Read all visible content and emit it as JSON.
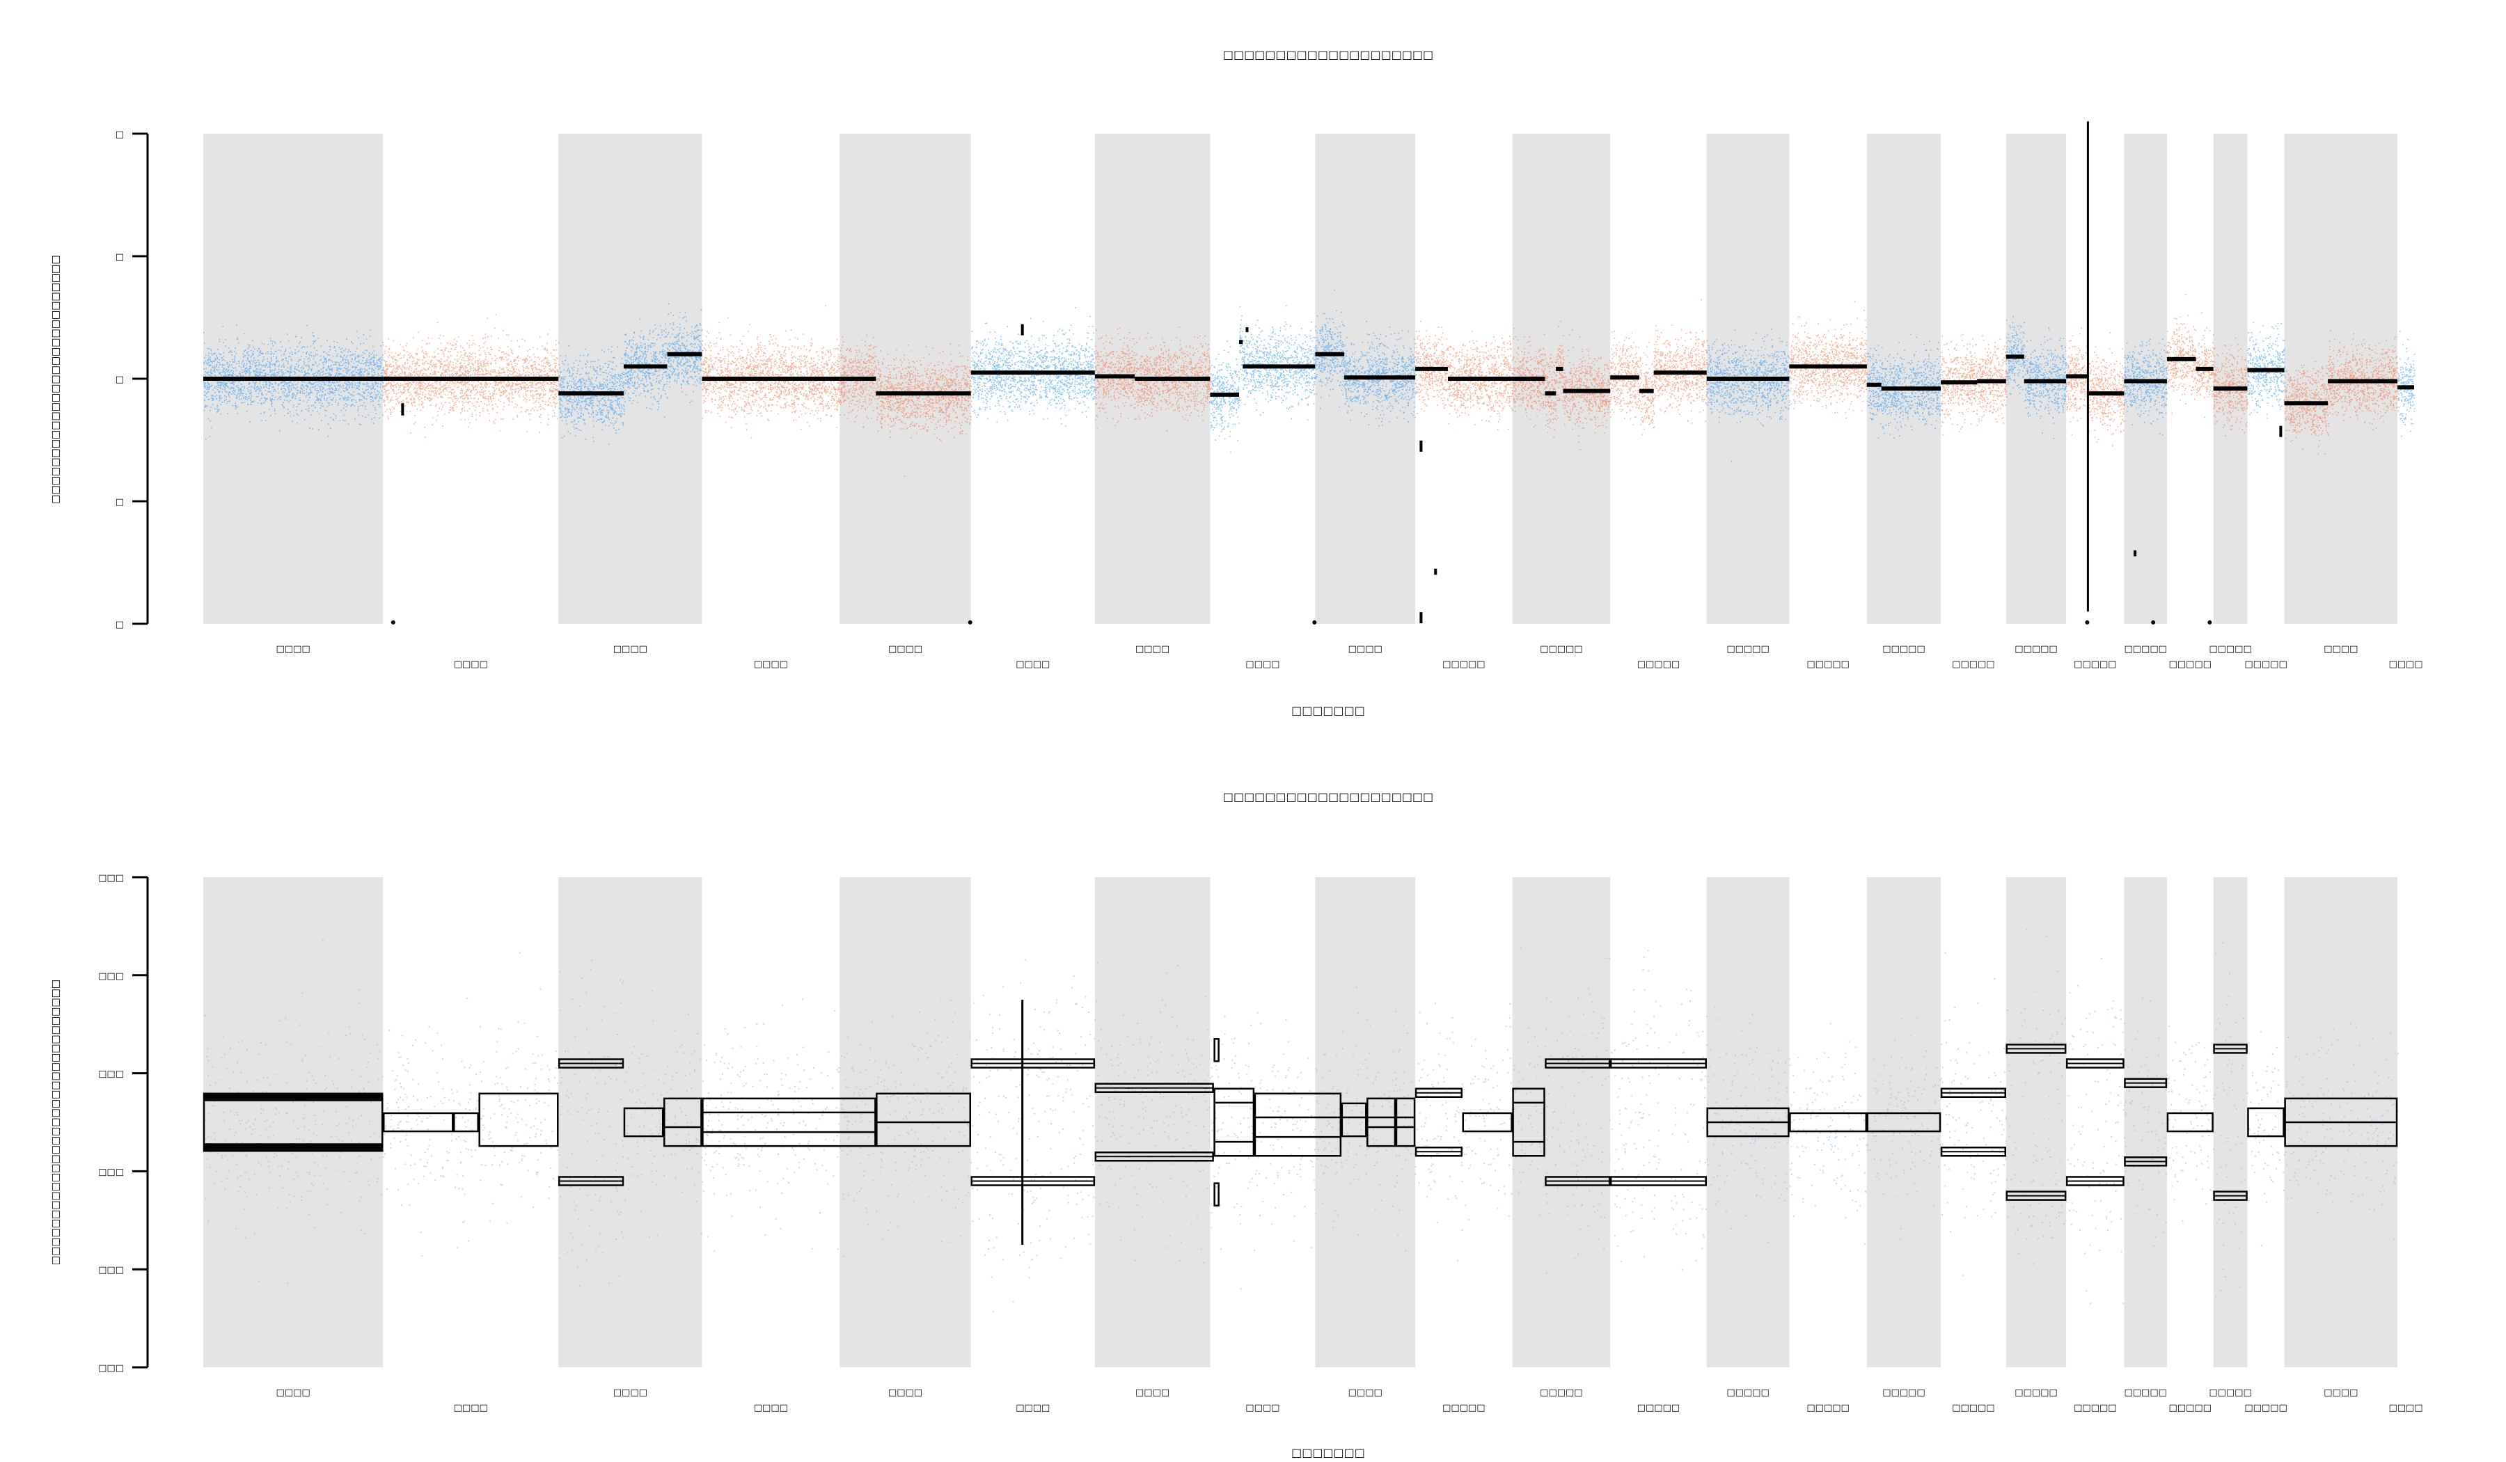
{
  "chart_data": [
    {
      "type": "scatter",
      "title": "□□□□□□□□□□□□□□□□□□□□",
      "xlabel": "□□□□□□□",
      "ylabel": "□□□□□□□□□□□□□□□□□□□□□□□□□□□",
      "ylim": [
        0,
        4
      ],
      "yticks": [
        "□",
        "□",
        "□",
        "□",
        "□"
      ],
      "grid": false,
      "colors": {
        "blue": "#1f8ff5",
        "orange": "#f5673a",
        "band": "#e4e4e4",
        "segment": "#000000"
      },
      "chromosomes": [
        {
          "label": "□□□□",
          "start": 0,
          "end": 248,
          "color": "blue",
          "segments": [
            [
              0,
              248,
              2.0
            ]
          ],
          "band": true
        },
        {
          "label": "□□□□",
          "start": 248,
          "end": 490,
          "color": "orange",
          "segments": [
            [
              0,
              242,
              2.0
            ]
          ],
          "band": false
        },
        {
          "label": "□□□□",
          "start": 490,
          "end": 688,
          "color": "blue",
          "segments": [
            [
              0,
              90,
              1.88
            ],
            [
              90,
              150,
              2.1
            ],
            [
              150,
              198,
              2.2
            ]
          ],
          "band": true
        },
        {
          "label": "□□□□",
          "start": 688,
          "end": 878,
          "color": "orange",
          "segments": [
            [
              0,
              190,
              2.0
            ]
          ],
          "band": false
        },
        {
          "label": "□□□□",
          "start": 878,
          "end": 1059,
          "color": "orange",
          "segments": [
            [
              0,
              50,
              2.0
            ],
            [
              50,
              181,
              1.88
            ]
          ],
          "band": true
        },
        {
          "label": "□□□□",
          "start": 1059,
          "end": 1230,
          "color": "blue",
          "segments": [
            [
              0,
              171,
              2.05
            ]
          ],
          "band": false
        },
        {
          "label": "□□□□",
          "start": 1230,
          "end": 1389,
          "color": "orange",
          "segments": [
            [
              0,
              55,
              2.02
            ],
            [
              55,
              159,
              2.0
            ]
          ],
          "band": true
        },
        {
          "label": "□□□□",
          "start": 1389,
          "end": 1534,
          "color": "blue",
          "segments": [
            [
              0,
              40,
              1.87
            ],
            [
              40,
              45,
              2.3
            ],
            [
              45,
              145,
              2.1
            ]
          ],
          "band": false
        },
        {
          "label": "□□□□",
          "start": 1534,
          "end": 1672,
          "color": "blue",
          "segments": [
            [
              0,
              40,
              2.2
            ],
            [
              40,
              138,
              2.01
            ]
          ],
          "band": true
        },
        {
          "label": "□□□□□",
          "start": 1672,
          "end": 1806,
          "color": "orange",
          "segments": [
            [
              0,
              45,
              2.08
            ],
            [
              45,
              134,
              2.0
            ]
          ],
          "band": false
        },
        {
          "label": "□□□□□",
          "start": 1806,
          "end": 1941,
          "color": "orange",
          "segments": [
            [
              0,
              45,
              2.0
            ],
            [
              45,
              60,
              1.88
            ],
            [
              60,
              70,
              2.08
            ],
            [
              70,
              135,
              1.9
            ]
          ],
          "band": true
        },
        {
          "label": "□□□□□",
          "start": 1941,
          "end": 2074,
          "color": "orange",
          "segments": [
            [
              0,
              40,
              2.01
            ],
            [
              40,
              60,
              1.9
            ],
            [
              60,
              133,
              2.05
            ]
          ],
          "band": false
        },
        {
          "label": "□□□□□",
          "start": 2074,
          "end": 2188,
          "color": "blue",
          "segments": [
            [
              0,
              114,
              2.0
            ]
          ],
          "band": true
        },
        {
          "label": "□□□□□",
          "start": 2188,
          "end": 2295,
          "color": "orange",
          "segments": [
            [
              0,
              107,
              2.1
            ]
          ],
          "band": false
        },
        {
          "label": "□□□□□",
          "start": 2295,
          "end": 2397,
          "color": "blue",
          "segments": [
            [
              0,
              20,
              1.95
            ],
            [
              20,
              102,
              1.92
            ]
          ],
          "band": true
        },
        {
          "label": "□□□□□",
          "start": 2397,
          "end": 2487,
          "color": "orange",
          "segments": [
            [
              0,
              50,
              1.97
            ],
            [
              50,
              90,
              1.98
            ]
          ],
          "band": false
        },
        {
          "label": "□□□□□",
          "start": 2487,
          "end": 2570,
          "color": "blue",
          "segments": [
            [
              0,
              25,
              2.18
            ],
            [
              25,
              83,
              1.98
            ]
          ],
          "band": true
        },
        {
          "label": "□□□□□",
          "start": 2570,
          "end": 2650,
          "color": "orange",
          "segments": [
            [
              0,
              30,
              2.02
            ],
            [
              30,
              80,
              1.88
            ]
          ],
          "band": false
        },
        {
          "label": "□□□□□",
          "start": 2650,
          "end": 2709,
          "color": "blue",
          "segments": [
            [
              0,
              59,
              1.98
            ]
          ],
          "band": true
        },
        {
          "label": "□□□□□",
          "start": 2709,
          "end": 2773,
          "color": "orange",
          "segments": [
            [
              0,
              40,
              2.16
            ],
            [
              40,
              64,
              2.08
            ]
          ],
          "band": false
        },
        {
          "label": "□□□□□",
          "start": 2773,
          "end": 2820,
          "color": "orange",
          "segments": [
            [
              0,
              47,
              1.92
            ]
          ],
          "band": true
        },
        {
          "label": "□□□□□",
          "start": 2820,
          "end": 2871,
          "color": "blue",
          "segments": [
            [
              0,
              51,
              2.07
            ]
          ],
          "band": false
        },
        {
          "label": "□□□□",
          "start": 2871,
          "end": 3027,
          "color": "orange",
          "segments": [
            [
              0,
              60,
              1.8
            ],
            [
              60,
              156,
              1.98
            ]
          ],
          "band": true
        },
        {
          "label": "□□□□",
          "start": 3027,
          "end": 3050,
          "color": "blue",
          "segments": [
            [
              0,
              23,
              1.93
            ]
          ],
          "band": false
        }
      ]
    },
    {
      "type": "scatter",
      "title": "□□□□□□□□□□□□□□□□□□□□",
      "xlabel": "□□□□□□□",
      "ylabel": "□□□□□□□□□□□□□□□□□□□□□□□□□□□□□□□",
      "ylim": [
        0,
        1
      ],
      "yticks": [
        "□□□",
        "□□□",
        "□□□",
        "□□□",
        "□□□",
        "□□□"
      ],
      "grid": false,
      "colors": {
        "points": "#9bbfe6",
        "band": "#e4e4e4",
        "segment": "#000000"
      },
      "segments": [
        {
          "x0": 0,
          "x1": 248,
          "values": [
            0.55,
            0.45
          ]
        },
        {
          "x0": 248,
          "x1": 345,
          "values": [
            0.51,
            0.49
          ]
        },
        {
          "x0": 345,
          "x1": 380,
          "values": [
            0.51,
            0.49
          ]
        },
        {
          "x0": 380,
          "x1": 490,
          "values": [
            0.55,
            0.46
          ]
        },
        {
          "x0": 490,
          "x1": 580,
          "values": [
            0.62,
            0.38
          ]
        },
        {
          "x0": 580,
          "x1": 635,
          "values": [
            0.52,
            0.48
          ]
        },
        {
          "x0": 635,
          "x1": 688,
          "values": [
            0.54,
            0.49,
            0.46
          ]
        },
        {
          "x0": 688,
          "x1": 928,
          "values": [
            0.54,
            0.52,
            0.48,
            0.46
          ]
        },
        {
          "x0": 928,
          "x1": 1059,
          "values": [
            0.55,
            0.5,
            0.46
          ]
        },
        {
          "x0": 1059,
          "x1": 1230,
          "values": [
            0.62,
            0.38
          ]
        },
        {
          "x0": 1230,
          "x1": 1394,
          "values": [
            0.57,
            0.43
          ]
        },
        {
          "x0": 1394,
          "x1": 1450,
          "values": [
            0.56,
            0.54,
            0.46,
            0.44
          ]
        },
        {
          "x0": 1450,
          "x1": 1570,
          "values": [
            0.55,
            0.51,
            0.47,
            0.44
          ]
        },
        {
          "x0": 1570,
          "x1": 1605,
          "values": [
            0.53,
            0.51,
            0.48
          ]
        },
        {
          "x0": 1605,
          "x1": 1645,
          "values": [
            0.54,
            0.51,
            0.49,
            0.46
          ]
        },
        {
          "x0": 1645,
          "x1": 1672,
          "values": [
            0.54,
            0.51,
            0.49,
            0.46
          ]
        },
        {
          "x0": 1672,
          "x1": 1737,
          "values": [
            0.56,
            0.44
          ]
        },
        {
          "x0": 1737,
          "x1": 1806,
          "values": [
            0.51,
            0.49
          ]
        },
        {
          "x0": 1806,
          "x1": 1851,
          "values": [
            0.56,
            0.54,
            0.46,
            0.44
          ]
        },
        {
          "x0": 1851,
          "x1": 1941,
          "values": [
            0.62,
            0.38
          ]
        },
        {
          "x0": 1941,
          "x1": 2074,
          "values": [
            0.62,
            0.38
          ]
        },
        {
          "x0": 2074,
          "x1": 2188,
          "values": [
            0.52,
            0.5,
            0.48
          ]
        },
        {
          "x0": 2188,
          "x1": 2295,
          "values": [
            0.51,
            0.49
          ]
        },
        {
          "x0": 2295,
          "x1": 2397,
          "values": [
            0.51,
            0.49
          ]
        },
        {
          "x0": 2397,
          "x1": 2487,
          "values": [
            0.56,
            0.44
          ]
        },
        {
          "x0": 2487,
          "x1": 2570,
          "values": [
            0.65,
            0.35
          ]
        },
        {
          "x0": 2570,
          "x1": 2650,
          "values": [
            0.62,
            0.38
          ]
        },
        {
          "x0": 2650,
          "x1": 2709,
          "values": [
            0.58,
            0.42
          ]
        },
        {
          "x0": 2709,
          "x1": 2773,
          "values": [
            0.51,
            0.49
          ]
        },
        {
          "x0": 2773,
          "x1": 2820,
          "values": [
            0.65,
            0.35
          ]
        },
        {
          "x0": 2820,
          "x1": 2871,
          "values": [
            0.52,
            0.48
          ]
        },
        {
          "x0": 2871,
          "x1": 3027,
          "values": [
            0.54,
            0.5,
            0.46
          ]
        }
      ]
    }
  ]
}
